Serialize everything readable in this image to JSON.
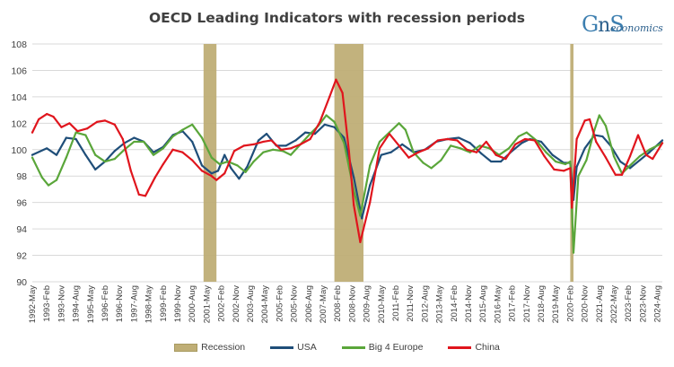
{
  "logo": {
    "mark_g": "G",
    "mark_s": "S",
    "mark_n": "n",
    "wordmark": "economics"
  },
  "colors": {
    "recession": "#bfae76",
    "usa": "#1f4e79",
    "europe": "#5aa63a",
    "china": "#e0151d",
    "grid": "#d9d9d9"
  },
  "chart_data": {
    "type": "line",
    "title": "OECD Leading Indicators with recession periods",
    "ylim": [
      90,
      108
    ],
    "yticks": [
      90,
      92,
      94,
      96,
      98,
      100,
      102,
      104,
      106,
      108
    ],
    "xlim": [
      "1992-05",
      "2024-11"
    ],
    "grid": "horizontal",
    "legend_position": "bottom",
    "xtick_labels": [
      "1992-May",
      "1993-Feb",
      "1993-Nov",
      "1994-Aug",
      "1995-May",
      "1996-Feb",
      "1996-Nov",
      "1997-Aug",
      "1998-May",
      "1999-Feb",
      "1999-Nov",
      "2000-Aug",
      "2001-May",
      "2002-Feb",
      "2002-Nov",
      "2003-Aug",
      "2004-May",
      "2005-Feb",
      "2005-Nov",
      "2006-Aug",
      "2007-May",
      "2008-Feb",
      "2008-Nov",
      "2009-Aug",
      "2010-May",
      "2011-Feb",
      "2011-Nov",
      "2012-Aug",
      "2013-May",
      "2014-Feb",
      "2014-Nov",
      "2015-Aug",
      "2016-May",
      "2017-Feb",
      "2017-Nov",
      "2018-Aug",
      "2019-May",
      "2020-Feb",
      "2020-Nov",
      "2021-Aug",
      "2022-May",
      "2023-Feb",
      "2023-Nov",
      "2024-Aug"
    ],
    "recessions": [
      {
        "start": "2001-03",
        "end": "2001-11"
      },
      {
        "start": "2007-12",
        "end": "2009-06"
      },
      {
        "start": "2020-02",
        "end": "2020-04"
      }
    ],
    "series": [
      {
        "name": "USA",
        "color": "#1f4e79",
        "points": [
          [
            "1992-05",
            99.6
          ],
          [
            "1993-02",
            100.1
          ],
          [
            "1993-08",
            99.6
          ],
          [
            "1994-02",
            100.9
          ],
          [
            "1994-08",
            100.8
          ],
          [
            "1995-02",
            99.6
          ],
          [
            "1995-08",
            98.5
          ],
          [
            "1996-02",
            99.1
          ],
          [
            "1996-08",
            99.9
          ],
          [
            "1997-02",
            100.5
          ],
          [
            "1997-08",
            100.9
          ],
          [
            "1998-02",
            100.6
          ],
          [
            "1998-08",
            99.8
          ],
          [
            "1999-02",
            100.2
          ],
          [
            "1999-08",
            101.1
          ],
          [
            "2000-02",
            101.4
          ],
          [
            "2000-08",
            100.6
          ],
          [
            "2001-02",
            98.8
          ],
          [
            "2001-08",
            98.2
          ],
          [
            "2001-12",
            98.4
          ],
          [
            "2002-04",
            99.6
          ],
          [
            "2002-08",
            98.6
          ],
          [
            "2003-01",
            97.8
          ],
          [
            "2003-06",
            98.7
          ],
          [
            "2004-01",
            100.7
          ],
          [
            "2004-06",
            101.2
          ],
          [
            "2004-12",
            100.3
          ],
          [
            "2005-06",
            100.3
          ],
          [
            "2005-12",
            100.7
          ],
          [
            "2006-06",
            101.3
          ],
          [
            "2006-12",
            101.2
          ],
          [
            "2007-06",
            101.9
          ],
          [
            "2007-12",
            101.7
          ],
          [
            "2008-06",
            100.9
          ],
          [
            "2008-12",
            97.9
          ],
          [
            "2009-05",
            94.8
          ],
          [
            "2009-10",
            97.3
          ],
          [
            "2010-05",
            99.6
          ],
          [
            "2010-11",
            99.8
          ],
          [
            "2011-06",
            100.4
          ],
          [
            "2012-01",
            99.8
          ],
          [
            "2012-08",
            100.0
          ],
          [
            "2013-03",
            100.6
          ],
          [
            "2013-10",
            100.8
          ],
          [
            "2014-05",
            100.9
          ],
          [
            "2014-12",
            100.5
          ],
          [
            "2015-07",
            99.7
          ],
          [
            "2016-01",
            99.1
          ],
          [
            "2016-07",
            99.1
          ],
          [
            "2017-02",
            99.9
          ],
          [
            "2017-08",
            100.5
          ],
          [
            "2018-01",
            100.8
          ],
          [
            "2018-08",
            100.6
          ],
          [
            "2019-03",
            99.6
          ],
          [
            "2019-10",
            99.0
          ],
          [
            "2020-02",
            99.0
          ],
          [
            "2020-04",
            96.2
          ],
          [
            "2020-06",
            98.7
          ],
          [
            "2020-11",
            100.1
          ],
          [
            "2021-05",
            101.1
          ],
          [
            "2021-10",
            101.0
          ],
          [
            "2022-03",
            100.3
          ],
          [
            "2022-09",
            99.1
          ],
          [
            "2023-03",
            98.6
          ],
          [
            "2023-09",
            99.2
          ],
          [
            "2024-03",
            99.8
          ],
          [
            "2024-11",
            100.7
          ]
        ]
      },
      {
        "name": "Big 4 Europe",
        "color": "#5aa63a",
        "points": [
          [
            "1992-05",
            99.4
          ],
          [
            "1992-11",
            97.9
          ],
          [
            "1993-03",
            97.3
          ],
          [
            "1993-08",
            97.7
          ],
          [
            "1994-02",
            99.4
          ],
          [
            "1994-08",
            101.3
          ],
          [
            "1995-02",
            101.1
          ],
          [
            "1995-08",
            99.6
          ],
          [
            "1996-02",
            99.1
          ],
          [
            "1996-08",
            99.3
          ],
          [
            "1997-02",
            100.0
          ],
          [
            "1997-08",
            100.6
          ],
          [
            "1998-02",
            100.6
          ],
          [
            "1998-08",
            99.6
          ],
          [
            "1999-02",
            100.1
          ],
          [
            "1999-08",
            101.0
          ],
          [
            "2000-02",
            101.5
          ],
          [
            "2000-08",
            101.9
          ],
          [
            "2001-02",
            100.9
          ],
          [
            "2001-08",
            99.4
          ],
          [
            "2002-01",
            98.9
          ],
          [
            "2002-06",
            99.1
          ],
          [
            "2002-12",
            98.8
          ],
          [
            "2003-05",
            98.3
          ],
          [
            "2003-10",
            99.1
          ],
          [
            "2004-04",
            99.8
          ],
          [
            "2004-10",
            100.0
          ],
          [
            "2005-04",
            99.9
          ],
          [
            "2005-09",
            99.6
          ],
          [
            "2006-03",
            100.4
          ],
          [
            "2006-09",
            101.2
          ],
          [
            "2007-02",
            101.8
          ],
          [
            "2007-07",
            102.6
          ],
          [
            "2007-12",
            102.1
          ],
          [
            "2008-06",
            100.5
          ],
          [
            "2008-12",
            96.9
          ],
          [
            "2009-04",
            95.0
          ],
          [
            "2009-10",
            98.8
          ],
          [
            "2010-04",
            100.6
          ],
          [
            "2010-10",
            101.3
          ],
          [
            "2011-04",
            102.0
          ],
          [
            "2011-08",
            101.5
          ],
          [
            "2012-01",
            99.8
          ],
          [
            "2012-07",
            99.0
          ],
          [
            "2012-12",
            98.6
          ],
          [
            "2013-06",
            99.2
          ],
          [
            "2013-12",
            100.3
          ],
          [
            "2014-06",
            100.1
          ],
          [
            "2014-12",
            99.8
          ],
          [
            "2015-06",
            100.3
          ],
          [
            "2015-12",
            100.1
          ],
          [
            "2016-06",
            99.6
          ],
          [
            "2016-12",
            100.1
          ],
          [
            "2017-06",
            101.0
          ],
          [
            "2017-11",
            101.3
          ],
          [
            "2018-05",
            100.7
          ],
          [
            "2018-11",
            99.8
          ],
          [
            "2019-05",
            99.1
          ],
          [
            "2019-11",
            98.9
          ],
          [
            "2020-02",
            99.1
          ],
          [
            "2020-04",
            92.2
          ],
          [
            "2020-07",
            98.0
          ],
          [
            "2020-12",
            99.2
          ],
          [
            "2021-05",
            101.5
          ],
          [
            "2021-08",
            102.6
          ],
          [
            "2021-12",
            101.8
          ],
          [
            "2022-05",
            99.5
          ],
          [
            "2022-10",
            98.2
          ],
          [
            "2023-03",
            98.8
          ],
          [
            "2023-09",
            99.5
          ],
          [
            "2024-03",
            100.0
          ],
          [
            "2024-11",
            100.5
          ]
        ]
      },
      {
        "name": "China",
        "color": "#e0151d",
        "points": [
          [
            "1992-05",
            101.3
          ],
          [
            "1992-09",
            102.3
          ],
          [
            "1993-02",
            102.7
          ],
          [
            "1993-06",
            102.5
          ],
          [
            "1993-11",
            101.7
          ],
          [
            "1994-04",
            102.0
          ],
          [
            "1994-09",
            101.4
          ],
          [
            "1995-03",
            101.6
          ],
          [
            "1995-09",
            102.1
          ],
          [
            "1996-02",
            102.2
          ],
          [
            "1996-08",
            101.9
          ],
          [
            "1997-01",
            100.8
          ],
          [
            "1997-06",
            98.4
          ],
          [
            "1997-11",
            96.6
          ],
          [
            "1998-03",
            96.5
          ],
          [
            "1998-09",
            97.9
          ],
          [
            "1999-02",
            98.9
          ],
          [
            "1999-08",
            100.0
          ],
          [
            "2000-02",
            99.8
          ],
          [
            "2000-08",
            99.2
          ],
          [
            "2001-02",
            98.4
          ],
          [
            "2001-08",
            98.0
          ],
          [
            "2001-11",
            97.7
          ],
          [
            "2002-04",
            98.2
          ],
          [
            "2002-10",
            99.9
          ],
          [
            "2003-04",
            100.3
          ],
          [
            "2003-10",
            100.4
          ],
          [
            "2004-04",
            100.6
          ],
          [
            "2004-09",
            100.7
          ],
          [
            "2005-03",
            100.0
          ],
          [
            "2005-09",
            100.1
          ],
          [
            "2006-03",
            100.4
          ],
          [
            "2006-09",
            100.8
          ],
          [
            "2007-03",
            102.1
          ],
          [
            "2007-09",
            104.0
          ],
          [
            "2008-01",
            105.3
          ],
          [
            "2008-05",
            104.3
          ],
          [
            "2008-09",
            99.9
          ],
          [
            "2008-12",
            95.8
          ],
          [
            "2009-04",
            93.0
          ],
          [
            "2009-10",
            96.0
          ],
          [
            "2010-04",
            100.1
          ],
          [
            "2010-10",
            101.2
          ],
          [
            "2011-04",
            100.3
          ],
          [
            "2011-10",
            99.4
          ],
          [
            "2012-04",
            99.8
          ],
          [
            "2012-10",
            100.1
          ],
          [
            "2013-04",
            100.7
          ],
          [
            "2013-10",
            100.8
          ],
          [
            "2014-04",
            100.7
          ],
          [
            "2014-10",
            100.0
          ],
          [
            "2015-04",
            99.8
          ],
          [
            "2015-10",
            100.6
          ],
          [
            "2016-04",
            99.6
          ],
          [
            "2016-10",
            99.3
          ],
          [
            "2017-04",
            100.4
          ],
          [
            "2017-10",
            100.8
          ],
          [
            "2018-04",
            100.7
          ],
          [
            "2018-10",
            99.5
          ],
          [
            "2019-04",
            98.5
          ],
          [
            "2019-10",
            98.4
          ],
          [
            "2020-02",
            98.6
          ],
          [
            "2020-03",
            95.6
          ],
          [
            "2020-06",
            100.8
          ],
          [
            "2020-11",
            102.2
          ],
          [
            "2021-02",
            102.3
          ],
          [
            "2021-06",
            100.6
          ],
          [
            "2021-12",
            99.4
          ],
          [
            "2022-06",
            98.1
          ],
          [
            "2022-10",
            98.1
          ],
          [
            "2023-03",
            99.5
          ],
          [
            "2023-08",
            101.1
          ],
          [
            "2024-01",
            99.6
          ],
          [
            "2024-05",
            99.3
          ],
          [
            "2024-11",
            100.5
          ]
        ]
      }
    ],
    "legend": [
      "Recession",
      "USA",
      "Big 4 Europe",
      "China"
    ]
  }
}
